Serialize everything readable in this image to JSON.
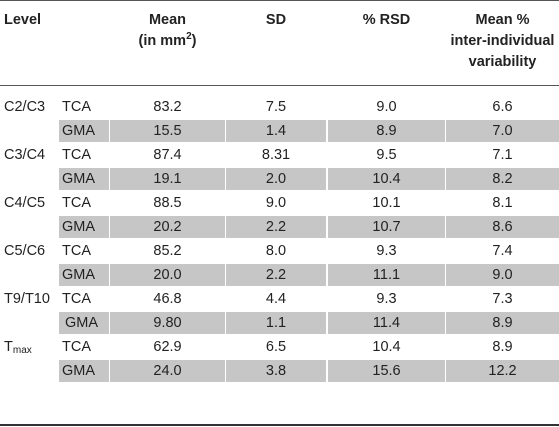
{
  "headers": {
    "level": "Level",
    "mean_line1": "Mean",
    "mean_line2": "(in mm",
    "mean_sup": "2",
    "mean_close": ")",
    "sd": "SD",
    "rsd": "% RSD",
    "var_line1": "Mean %",
    "var_line2": "inter-individual",
    "var_line3": "variability"
  },
  "rows": [
    {
      "level": "C2/C3",
      "group": "TCA",
      "mean": "83.2",
      "sd": "7.5",
      "rsd": "9.0",
      "var": "6.6",
      "shaded": false
    },
    {
      "level": "",
      "group": "GMA",
      "mean": "15.5",
      "sd": "1.4",
      "rsd": "8.9",
      "var": "7.0",
      "shaded": true
    },
    {
      "level": "C3/C4",
      "group": "TCA",
      "mean": "87.4",
      "sd": "8.31",
      "rsd": "9.5",
      "var": "7.1",
      "shaded": false
    },
    {
      "level": "",
      "group": "GMA",
      "mean": "19.1",
      "sd": "2.0",
      "rsd": "10.4",
      "var": "8.2",
      "shaded": true
    },
    {
      "level": "C4/C5",
      "group": "TCA",
      "mean": "88.5",
      "sd": "9.0",
      "rsd": "10.1",
      "var": "8.1",
      "shaded": false
    },
    {
      "level": "",
      "group": "GMA",
      "mean": "20.2",
      "sd": "2.2",
      "rsd": "10.7",
      "var": "8.6",
      "shaded": true
    },
    {
      "level": "C5/C6",
      "group": "TCA",
      "mean": "85.2",
      "sd": "8.0",
      "rsd": "9.3",
      "var": "7.4",
      "shaded": false
    },
    {
      "level": "",
      "group": "GMA",
      "mean": "20.0",
      "sd": "2.2",
      "rsd": "11.1",
      "var": "9.0",
      "shaded": true
    },
    {
      "level": "T9/T10",
      "group": "TCA",
      "mean": "46.8",
      "sd": "4.4",
      "rsd": "9.3",
      "var": "7.3",
      "shaded": false
    },
    {
      "level": "",
      "group": "GMA",
      "mean": "9.80",
      "sd": "1.1",
      "rsd": "11.4",
      "var": "8.9",
      "shaded": true,
      "indent": true
    },
    {
      "level": "T",
      "level_sub": "max",
      "group": "TCA",
      "mean": "62.9",
      "sd": "6.5",
      "rsd": "10.4",
      "var": "8.9",
      "shaded": false
    },
    {
      "level": "",
      "group": "GMA",
      "mean": "24.0",
      "sd": "3.8",
      "rsd": "15.6",
      "var": "12.2",
      "shaded": true
    }
  ]
}
